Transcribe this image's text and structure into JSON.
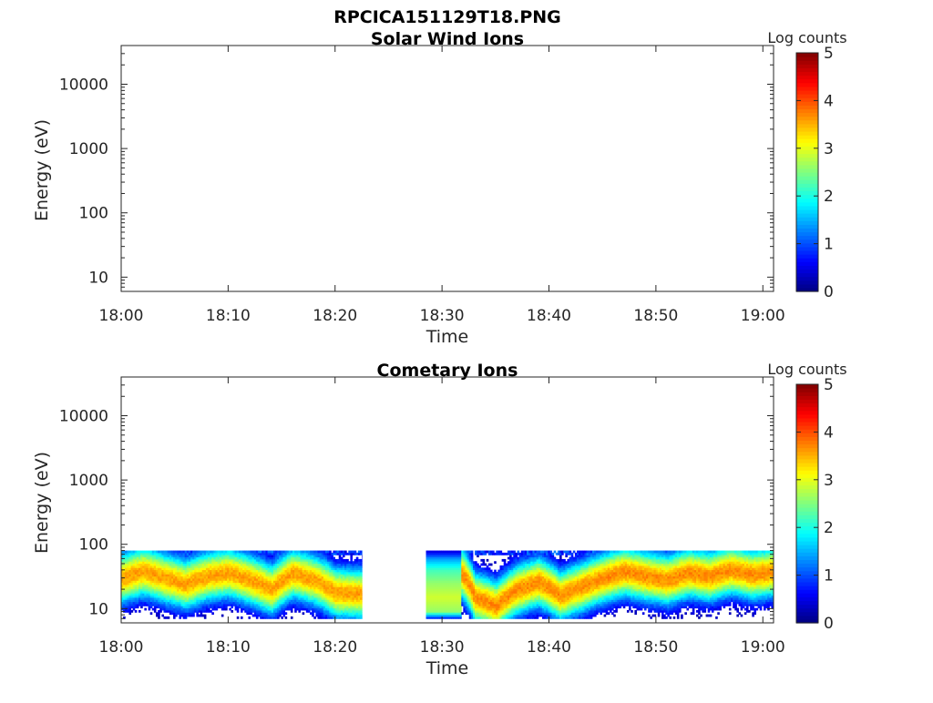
{
  "figure_title": "RPCICA151129T18.PNG",
  "colorbar": {
    "label": "Log counts",
    "ticks": [
      "0",
      "1",
      "2",
      "3",
      "4",
      "5"
    ],
    "range": [
      0,
      5
    ],
    "colormap": "jet"
  },
  "chart_data": [
    {
      "type": "heatmap",
      "title": "Solar Wind Ions",
      "xlabel": "Time",
      "ylabel": "Energy (eV)",
      "xlim": [
        "18:00",
        "19:01"
      ],
      "ylim": [
        6,
        40000
      ],
      "y_scale": "log",
      "x_ticks": [
        "18:00",
        "18:10",
        "18:20",
        "18:30",
        "18:40",
        "18:50",
        "19:00"
      ],
      "y_ticks": [
        "10",
        "100",
        "1000",
        "10000"
      ],
      "segments": []
    },
    {
      "type": "heatmap",
      "title": "Cometary Ions",
      "xlabel": "Time",
      "ylabel": "Energy (eV)",
      "xlim": [
        "18:00",
        "19:01"
      ],
      "ylim": [
        6,
        40000
      ],
      "y_scale": "log",
      "x_ticks": [
        "18:00",
        "18:10",
        "18:20",
        "18:30",
        "18:40",
        "18:50",
        "19:00"
      ],
      "y_ticks": [
        "10",
        "100",
        "1000",
        "10000"
      ],
      "segments": [
        {
          "start": "18:00",
          "end": "18:22.5",
          "energy_top_eV": 80,
          "energy_bottom_eV": 7,
          "peak_energy_eV": [
            [
              0,
              30
            ],
            [
              2,
              38
            ],
            [
              4,
              30
            ],
            [
              6,
              24
            ],
            [
              8,
              32
            ],
            [
              10,
              36
            ],
            [
              12,
              28
            ],
            [
              14,
              20
            ],
            [
              16,
              35
            ],
            [
              18,
              28
            ],
            [
              20,
              18
            ],
            [
              22.5,
              17
            ]
          ],
          "peak_log_counts": 3.6
        },
        {
          "start": "18:28.5",
          "end": "18:31.8",
          "kind": "uniform-block",
          "energy_top_eV": 80,
          "energy_bottom_eV": 7,
          "log_counts_by_energy": [
            [
              80,
              0.4
            ],
            [
              60,
              1.4
            ],
            [
              40,
              2.2
            ],
            [
              25,
              2.6
            ],
            [
              15,
              2.9
            ],
            [
              9,
              2.6
            ],
            [
              7,
              0.6
            ]
          ]
        },
        {
          "start": "18:31.8",
          "end": "19:01",
          "energy_top_eV": 80,
          "energy_bottom_eV": 7,
          "peak_energy_eV": [
            [
              31.8,
              35
            ],
            [
              33,
              15
            ],
            [
              35,
              11
            ],
            [
              37,
              20
            ],
            [
              39,
              26
            ],
            [
              41,
              16
            ],
            [
              43,
              22
            ],
            [
              45,
              30
            ],
            [
              47,
              38
            ],
            [
              49,
              32
            ],
            [
              51,
              28
            ],
            [
              53,
              36
            ],
            [
              55,
              32
            ],
            [
              57,
              40
            ],
            [
              59,
              34
            ],
            [
              61,
              38
            ]
          ],
          "peak_log_counts": 3.7
        }
      ]
    }
  ]
}
